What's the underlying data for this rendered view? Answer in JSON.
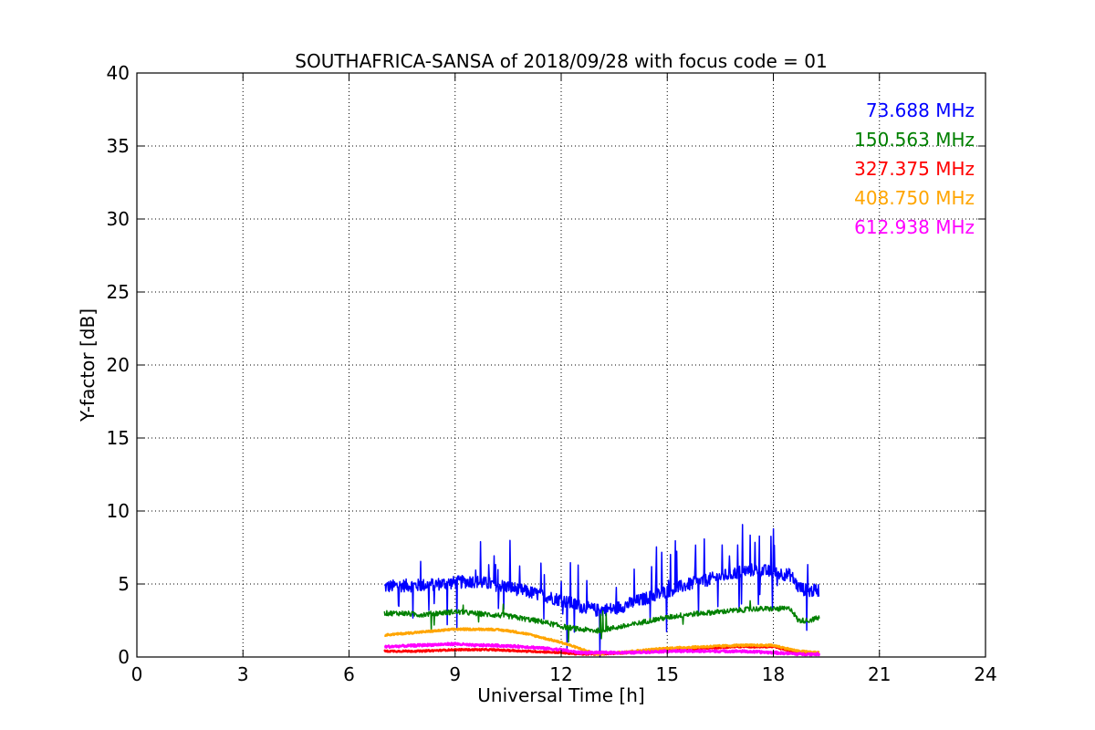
{
  "chart_data": {
    "type": "line",
    "title": "SOUTHAFRICA-SANSA of 2018/09/28 with focus code = 01",
    "xlabel": "Universal Time [h]",
    "ylabel": "Y-factor [dB]",
    "xlim": [
      0,
      24
    ],
    "ylim": [
      0,
      40
    ],
    "x_ticks": [
      0,
      3,
      6,
      9,
      12,
      15,
      18,
      21,
      24
    ],
    "y_ticks": [
      0,
      5,
      10,
      15,
      20,
      25,
      30,
      35,
      40
    ],
    "grid": true,
    "legend_position": "top-right",
    "series": [
      {
        "name": "73.688 MHz",
        "color": "#0000ff",
        "x": [
          7.0,
          7.5,
          8.0,
          8.5,
          9.0,
          9.5,
          10.0,
          10.5,
          11.0,
          11.5,
          12.0,
          12.5,
          13.0,
          13.5,
          14.0,
          14.5,
          15.0,
          15.5,
          16.0,
          16.5,
          17.0,
          17.5,
          18.0,
          18.5,
          18.7,
          19.0,
          19.3
        ],
        "y": [
          4.8,
          4.9,
          4.9,
          5.0,
          5.1,
          5.2,
          5.0,
          4.8,
          4.5,
          4.2,
          3.9,
          3.5,
          3.2,
          3.3,
          3.7,
          4.1,
          4.5,
          4.9,
          5.2,
          5.5,
          5.8,
          6.0,
          5.8,
          5.6,
          4.8,
          4.5,
          4.6
        ]
      },
      {
        "name": "150.563 MHz",
        "color": "#008000",
        "x": [
          7.0,
          7.5,
          8.0,
          8.5,
          9.0,
          9.5,
          10.0,
          10.5,
          11.0,
          11.5,
          12.0,
          12.5,
          13.0,
          13.5,
          14.0,
          14.5,
          15.0,
          15.5,
          16.0,
          16.5,
          17.0,
          17.5,
          18.0,
          18.5,
          18.7,
          19.0,
          19.3
        ],
        "y": [
          3.0,
          3.0,
          2.9,
          3.0,
          3.1,
          3.0,
          2.9,
          2.8,
          2.6,
          2.4,
          2.1,
          1.9,
          1.8,
          2.0,
          2.2,
          2.5,
          2.7,
          2.9,
          3.0,
          3.1,
          3.2,
          3.3,
          3.3,
          3.3,
          2.5,
          2.5,
          2.7
        ]
      },
      {
        "name": "327.375 MHz",
        "color": "#ff0000",
        "x": [
          7.0,
          8.0,
          9.0,
          10.0,
          11.0,
          12.0,
          12.5,
          13.0,
          14.0,
          15.0,
          16.0,
          17.0,
          18.0,
          18.7,
          19.3
        ],
        "y": [
          0.4,
          0.4,
          0.5,
          0.5,
          0.4,
          0.3,
          0.2,
          0.2,
          0.3,
          0.5,
          0.6,
          0.7,
          0.7,
          0.3,
          0.2
        ]
      },
      {
        "name": "408.750 MHz",
        "color": "#ffa500",
        "x": [
          7.0,
          7.5,
          8.0,
          8.5,
          9.0,
          9.5,
          10.0,
          10.5,
          11.0,
          11.5,
          12.0,
          12.5,
          13.0,
          13.5,
          14.0,
          15.0,
          16.0,
          17.0,
          18.0,
          18.7,
          19.3
        ],
        "y": [
          1.5,
          1.6,
          1.7,
          1.8,
          1.9,
          1.9,
          1.9,
          1.8,
          1.6,
          1.3,
          1.0,
          0.6,
          0.2,
          0.3,
          0.4,
          0.6,
          0.7,
          0.8,
          0.8,
          0.4,
          0.3
        ]
      },
      {
        "name": "612.938 MHz",
        "color": "#ff00ff",
        "x": [
          7.0,
          8.0,
          9.0,
          9.5,
          10.0,
          11.0,
          12.0,
          12.5,
          13.0,
          14.0,
          15.0,
          16.0,
          17.0,
          18.0,
          18.7,
          19.3
        ],
        "y": [
          0.7,
          0.8,
          0.9,
          0.8,
          0.8,
          0.7,
          0.5,
          0.3,
          0.3,
          0.3,
          0.4,
          0.4,
          0.4,
          0.3,
          0.2,
          0.2
        ]
      }
    ]
  }
}
